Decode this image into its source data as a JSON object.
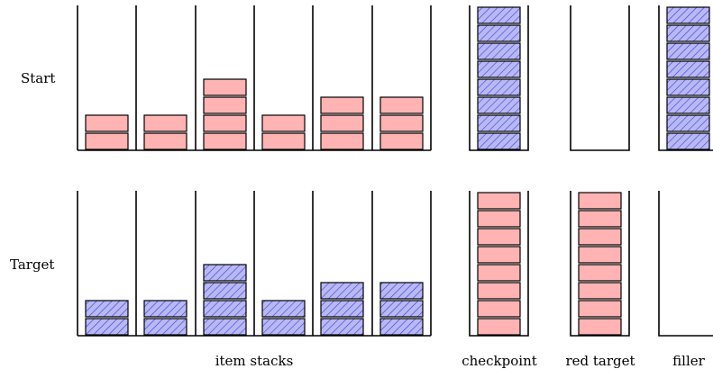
{
  "rows": [
    {
      "label": "Start",
      "item_stacks": [
        2,
        2,
        4,
        2,
        3,
        3
      ],
      "item_color": "red",
      "checkpoint": {
        "count": 8,
        "color": "blue"
      },
      "red_target": {
        "count": 0,
        "color": "red"
      },
      "filler": {
        "count": 8,
        "color": "blue"
      }
    },
    {
      "label": "Target",
      "item_stacks": [
        2,
        2,
        4,
        2,
        3,
        3
      ],
      "item_color": "blue",
      "checkpoint": {
        "count": 8,
        "color": "red"
      },
      "red_target": {
        "count": 8,
        "color": "red"
      },
      "filler": {
        "count": 0,
        "color": "blue"
      }
    }
  ],
  "bottom_labels": {
    "item_stacks": "item stacks",
    "checkpoint": "checkpoint",
    "red_target": "red target",
    "filler": "filler"
  },
  "colors": {
    "red_fill": "#ffb3b3",
    "blue_fill": "#b8b8f5",
    "blue_hatch": "#3b3bd6",
    "outline": "#000000"
  }
}
